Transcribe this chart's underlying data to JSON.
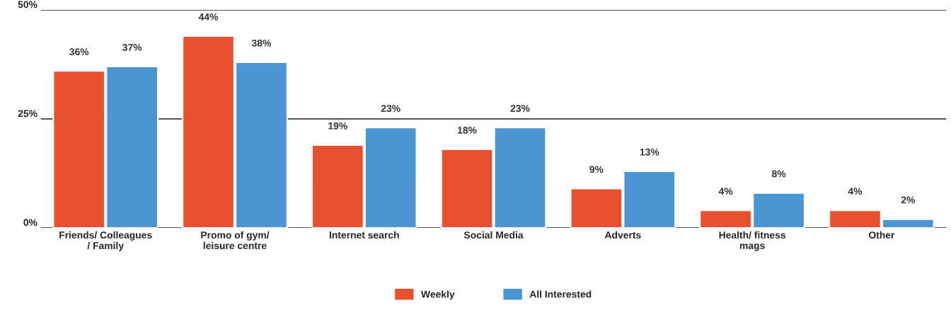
{
  "chart_data": {
    "type": "bar",
    "categories": [
      "Friends/ Colleagues\n/ Family",
      "Promo of gym/\nleisure centre",
      "Internet search",
      "Social Media",
      "Adverts",
      "Health/ fitness\nmags",
      "Other"
    ],
    "series": [
      {
        "name": "Weekly",
        "color": "#e8502e",
        "values": [
          36,
          44,
          19,
          18,
          9,
          4,
          4
        ],
        "value_labels": [
          "36%",
          "44%",
          "19%",
          "18%",
          "9%",
          "4%",
          "4%"
        ]
      },
      {
        "name": "All Interested",
        "color": "#4a96d2",
        "values": [
          37,
          38,
          23,
          23,
          13,
          8,
          2
        ],
        "value_labels": [
          "37%",
          "38%",
          "23%",
          "23%",
          "13%",
          "8%",
          "2%"
        ]
      }
    ],
    "ylim": [
      0,
      50
    ],
    "yticks": [
      {
        "value": 0,
        "label": "0%"
      },
      {
        "value": 25,
        "label": "25%"
      },
      {
        "value": 50,
        "label": "50%"
      }
    ],
    "grid": "y",
    "legend": "bottom"
  }
}
